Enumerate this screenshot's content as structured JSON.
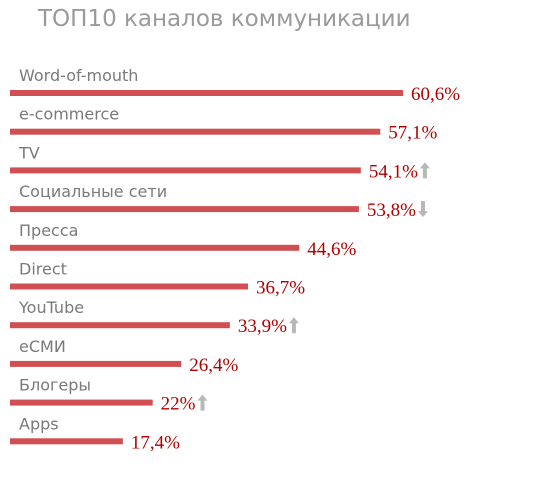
{
  "chart_data": {
    "type": "bar",
    "orientation": "horizontal",
    "title": "ТОП10 каналов коммуникации",
    "categories": [
      "Word-of-mouth",
      "e-commerce",
      "TV",
      "Социальные сети",
      "Пресса",
      "Direct",
      "YouTube",
      "еСМИ",
      "Блогеры",
      "Apps"
    ],
    "values": [
      60.6,
      57.1,
      54.1,
      53.8,
      44.6,
      36.7,
      33.9,
      26.4,
      22,
      17.4
    ],
    "value_labels": [
      "60,6%",
      "57,1%",
      "54,1%",
      "53,8%",
      "44,6%",
      "36,7%",
      "33,9%",
      "26,4%",
      "22%",
      "17,4%"
    ],
    "trends": [
      "",
      "",
      "up",
      "down",
      "",
      "",
      "up",
      "",
      "up",
      ""
    ],
    "xlim": [
      0,
      70
    ],
    "grid": false,
    "colors": {
      "bar": "#cf4f52",
      "value": "#b00000",
      "category": "#7a7a7a",
      "title": "#9a9a9a",
      "arrow": "#b8b8b8"
    }
  }
}
